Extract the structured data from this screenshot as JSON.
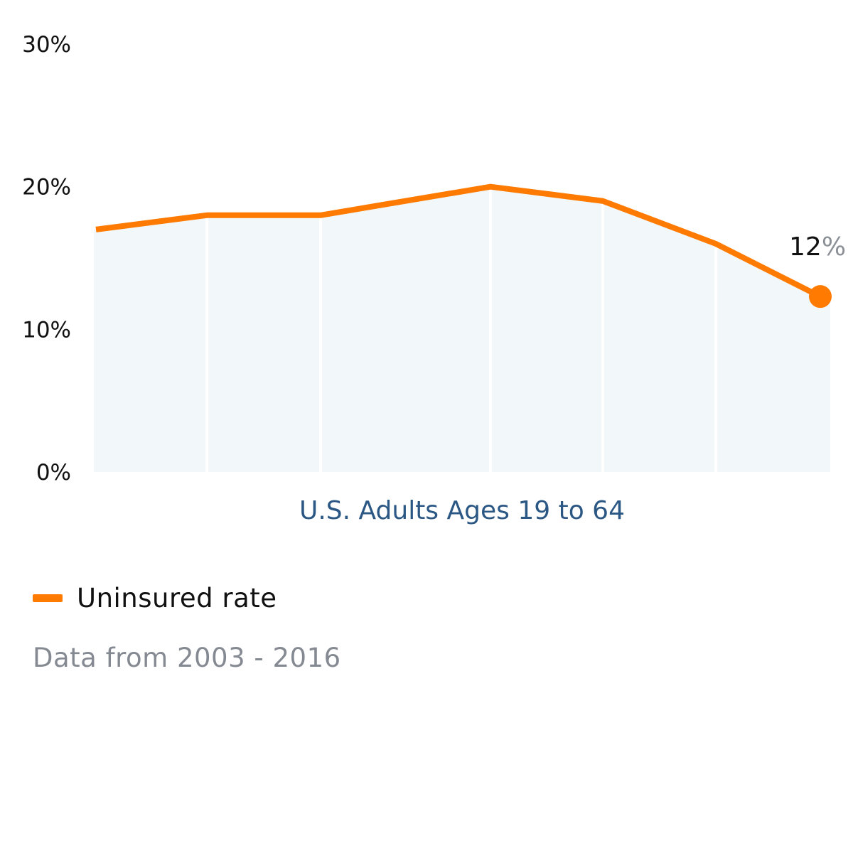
{
  "chart_data": {
    "type": "line",
    "x": [
      1,
      2,
      3,
      4,
      5,
      6,
      7
    ],
    "series": [
      {
        "name": "Uninsured rate",
        "values": [
          17,
          18,
          18,
          20,
          19,
          16,
          12.3
        ]
      }
    ],
    "ylim": [
      0,
      30
    ],
    "yticks": [
      0,
      10,
      20,
      30
    ],
    "ytick_labels": [
      "0%",
      "10%",
      "20%",
      "30%"
    ],
    "xlabel": "U.S. Adults Ages 19 to 64",
    "ylabel": "",
    "title": "",
    "grid": "vertical",
    "legend_position": "bottom-left",
    "end_label": {
      "value": "12",
      "unit": "%"
    },
    "colors": {
      "line": "#ff7a00",
      "area": "#f2f7f9",
      "xlabel": "#2b5784"
    }
  },
  "legend": {
    "label": "Uninsured rate"
  },
  "source_note": "Data from 2003 - 2016"
}
